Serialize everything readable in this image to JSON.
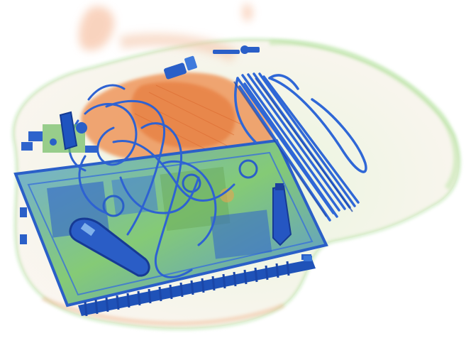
{
  "scene": {
    "subject": "x-ray-baggage-scan",
    "palette": {
      "background": "#ffffff",
      "organic": "#f08a4b",
      "mixed": "#7fd36b",
      "metal": "#1f5fd6",
      "metal_dark": "#1b3f9e",
      "board_green": "#8fcf6a"
    }
  }
}
